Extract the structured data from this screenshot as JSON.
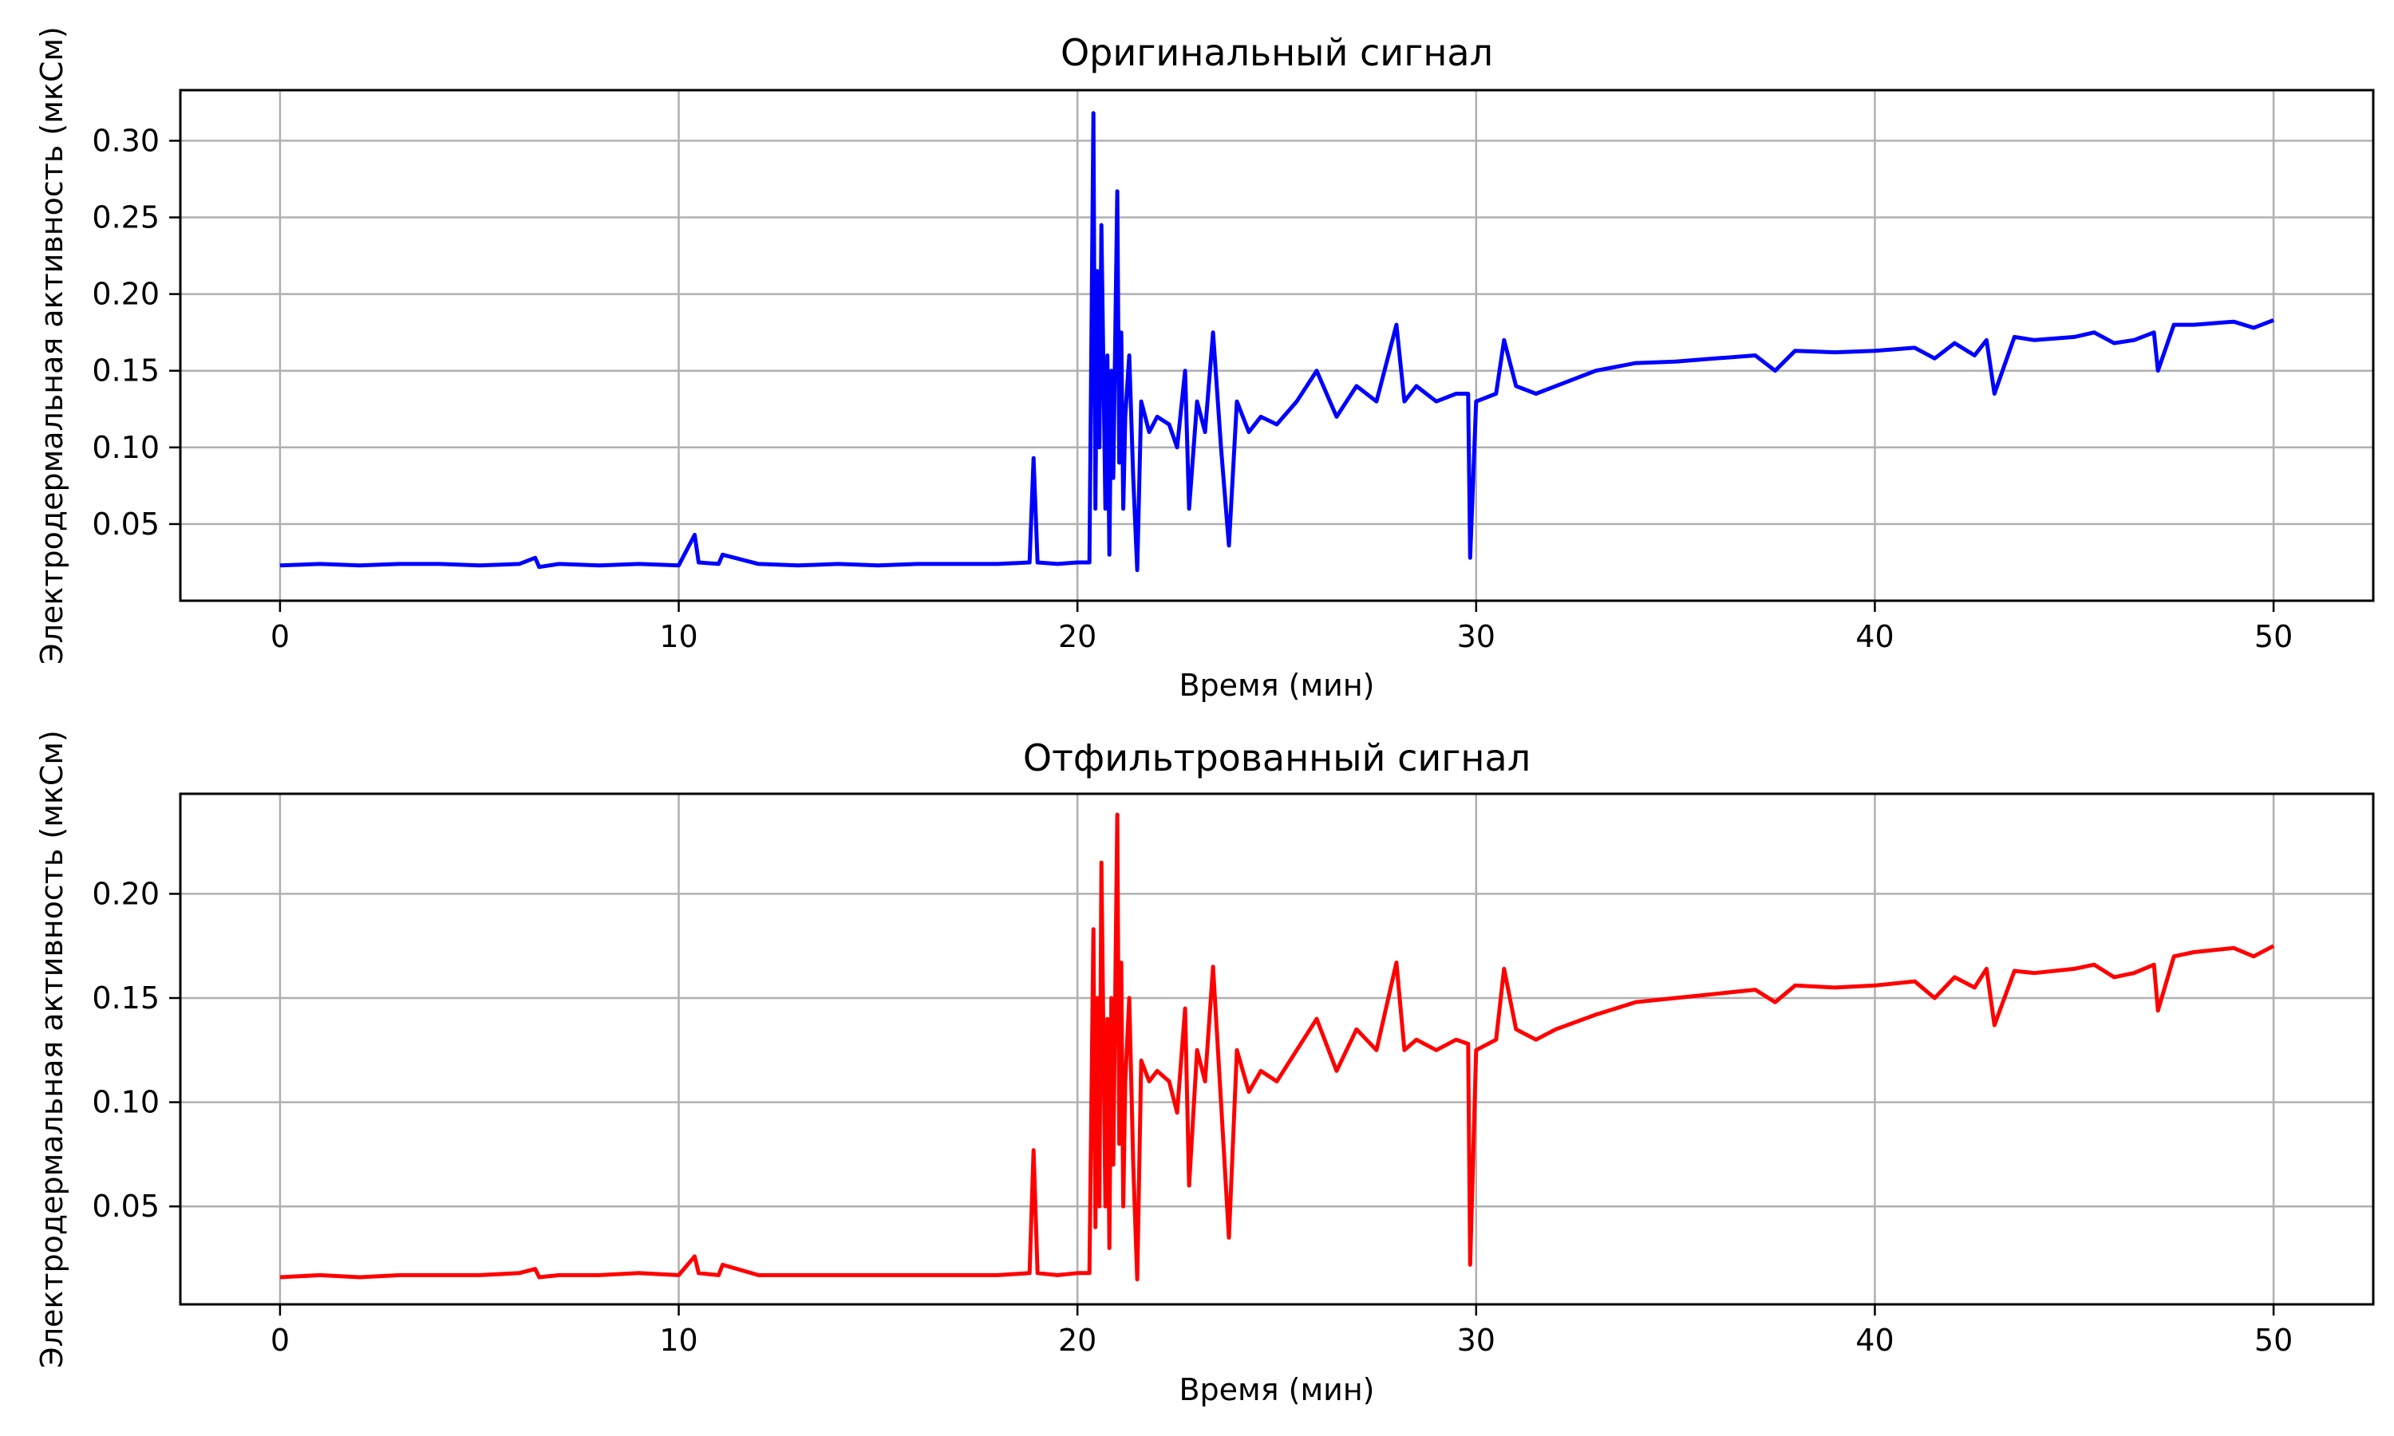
{
  "chart_data": [
    {
      "type": "line",
      "title": "Оригинальный сигнал",
      "xlabel": "Время (мин)",
      "ylabel": "Электродермальная активность (мкСм)",
      "xlim": [
        -2.5,
        52.5
      ],
      "ylim": [
        0.0,
        0.333
      ],
      "xticks": [
        0,
        10,
        20,
        30,
        40,
        50
      ],
      "yticks": [
        0.05,
        0.1,
        0.15,
        0.2,
        0.25,
        0.3
      ],
      "xtick_labels": [
        "0",
        "10",
        "20",
        "30",
        "40",
        "50"
      ],
      "ytick_labels": [
        "0.05",
        "0.10",
        "0.15",
        "0.20",
        "0.25",
        "0.30"
      ],
      "grid": true,
      "color": "#0000ff",
      "series": [
        {
          "x": [
            0,
            1,
            2,
            3,
            4,
            5,
            6,
            6.4,
            6.5,
            7,
            8,
            9,
            10,
            10.4,
            10.5,
            11,
            11.1,
            12,
            13,
            14,
            15,
            16,
            17,
            18,
            18.8,
            18.9,
            19.0,
            19.5,
            20.0,
            20.3,
            20.4,
            20.45,
            20.5,
            20.55,
            20.6,
            20.7,
            20.75,
            20.8,
            20.85,
            20.9,
            21.0,
            21.05,
            21.1,
            21.15,
            21.2,
            21.3,
            21.4,
            21.5,
            21.6,
            21.8,
            22.0,
            22.3,
            22.5,
            22.7,
            22.8,
            23.0,
            23.2,
            23.4,
            23.6,
            23.8,
            24.0,
            24.3,
            24.6,
            25.0,
            25.5,
            26.0,
            26.5,
            27.0,
            27.5,
            28.0,
            28.2,
            28.5,
            29.0,
            29.5,
            29.8,
            29.85,
            30.0,
            30.5,
            30.7,
            31.0,
            31.5,
            32.0,
            33.0,
            34.0,
            35.0,
            36.0,
            37.0,
            37.5,
            38.0,
            39.0,
            40.0,
            41.0,
            41.5,
            42.0,
            42.5,
            42.8,
            43.0,
            43.5,
            44.0,
            45.0,
            45.5,
            46.0,
            46.5,
            47.0,
            47.1,
            47.5,
            48.0,
            49.0,
            49.5,
            50.0
          ],
          "y": [
            0.023,
            0.024,
            0.023,
            0.024,
            0.024,
            0.023,
            0.024,
            0.028,
            0.022,
            0.024,
            0.023,
            0.024,
            0.023,
            0.043,
            0.025,
            0.024,
            0.03,
            0.024,
            0.023,
            0.024,
            0.023,
            0.024,
            0.024,
            0.024,
            0.025,
            0.093,
            0.025,
            0.024,
            0.025,
            0.025,
            0.318,
            0.06,
            0.215,
            0.1,
            0.245,
            0.06,
            0.16,
            0.03,
            0.15,
            0.08,
            0.267,
            0.09,
            0.175,
            0.06,
            0.12,
            0.16,
            0.08,
            0.02,
            0.13,
            0.11,
            0.12,
            0.115,
            0.1,
            0.15,
            0.06,
            0.13,
            0.11,
            0.175,
            0.1,
            0.036,
            0.13,
            0.11,
            0.12,
            0.115,
            0.13,
            0.15,
            0.12,
            0.14,
            0.13,
            0.18,
            0.13,
            0.14,
            0.13,
            0.135,
            0.135,
            0.028,
            0.13,
            0.135,
            0.17,
            0.14,
            0.135,
            0.14,
            0.15,
            0.155,
            0.156,
            0.158,
            0.16,
            0.15,
            0.163,
            0.162,
            0.163,
            0.165,
            0.158,
            0.168,
            0.16,
            0.17,
            0.135,
            0.172,
            0.17,
            0.172,
            0.175,
            0.168,
            0.17,
            0.175,
            0.15,
            0.18,
            0.18,
            0.182,
            0.178,
            0.183
          ]
        }
      ]
    },
    {
      "type": "line",
      "title": "Отфильтрованный сигнал",
      "xlabel": "Время (мин)",
      "ylabel": "Электродермальная активность (мкСм)",
      "xlim": [
        -2.5,
        52.5
      ],
      "ylim": [
        0.003,
        0.248
      ],
      "xticks": [
        0,
        10,
        20,
        30,
        40,
        50
      ],
      "yticks": [
        0.05,
        0.1,
        0.15,
        0.2
      ],
      "xtick_labels": [
        "0",
        "10",
        "20",
        "30",
        "40",
        "50"
      ],
      "ytick_labels": [
        "0.05",
        "0.10",
        "0.15",
        "0.20"
      ],
      "grid": true,
      "color": "#ff0000",
      "series": [
        {
          "x": [
            0,
            1,
            2,
            3,
            4,
            5,
            6,
            6.4,
            6.5,
            7,
            8,
            9,
            10,
            10.4,
            10.5,
            11,
            11.1,
            12,
            13,
            14,
            15,
            16,
            17,
            18,
            18.8,
            18.9,
            19.0,
            19.5,
            20.0,
            20.3,
            20.4,
            20.45,
            20.5,
            20.55,
            20.6,
            20.7,
            20.75,
            20.8,
            20.85,
            20.9,
            21.0,
            21.05,
            21.1,
            21.15,
            21.2,
            21.3,
            21.4,
            21.5,
            21.6,
            21.8,
            22.0,
            22.3,
            22.5,
            22.7,
            22.8,
            23.0,
            23.2,
            23.4,
            23.6,
            23.8,
            24.0,
            24.3,
            24.6,
            25.0,
            25.5,
            26.0,
            26.5,
            27.0,
            27.5,
            28.0,
            28.2,
            28.5,
            29.0,
            29.5,
            29.8,
            29.85,
            30.0,
            30.5,
            30.7,
            31.0,
            31.5,
            32.0,
            33.0,
            34.0,
            35.0,
            36.0,
            37.0,
            37.5,
            38.0,
            39.0,
            40.0,
            41.0,
            41.5,
            42.0,
            42.5,
            42.8,
            43.0,
            43.5,
            44.0,
            45.0,
            45.5,
            46.0,
            46.5,
            47.0,
            47.1,
            47.5,
            48.0,
            49.0,
            49.5,
            50.0
          ],
          "y": [
            0.016,
            0.017,
            0.016,
            0.017,
            0.017,
            0.017,
            0.018,
            0.02,
            0.016,
            0.017,
            0.017,
            0.018,
            0.017,
            0.026,
            0.018,
            0.017,
            0.022,
            0.017,
            0.017,
            0.017,
            0.017,
            0.017,
            0.017,
            0.017,
            0.018,
            0.077,
            0.018,
            0.017,
            0.018,
            0.018,
            0.183,
            0.04,
            0.15,
            0.05,
            0.215,
            0.05,
            0.14,
            0.03,
            0.15,
            0.07,
            0.238,
            0.08,
            0.167,
            0.05,
            0.11,
            0.15,
            0.07,
            0.015,
            0.12,
            0.11,
            0.115,
            0.11,
            0.095,
            0.145,
            0.06,
            0.125,
            0.11,
            0.165,
            0.1,
            0.035,
            0.125,
            0.105,
            0.115,
            0.11,
            0.125,
            0.14,
            0.115,
            0.135,
            0.125,
            0.167,
            0.125,
            0.13,
            0.125,
            0.13,
            0.128,
            0.022,
            0.125,
            0.13,
            0.164,
            0.135,
            0.13,
            0.135,
            0.142,
            0.148,
            0.15,
            0.152,
            0.154,
            0.148,
            0.156,
            0.155,
            0.156,
            0.158,
            0.15,
            0.16,
            0.155,
            0.164,
            0.137,
            0.163,
            0.162,
            0.164,
            0.166,
            0.16,
            0.162,
            0.166,
            0.144,
            0.17,
            0.172,
            0.174,
            0.17,
            0.175
          ]
        }
      ]
    }
  ]
}
